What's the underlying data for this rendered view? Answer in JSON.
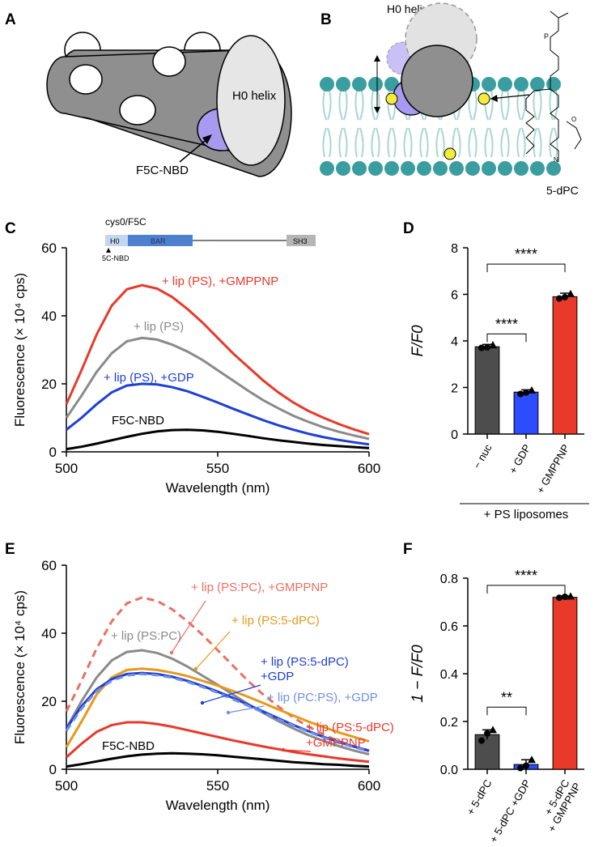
{
  "panel_labels": {
    "a": "A",
    "b": "B",
    "c": "C",
    "d": "D",
    "e": "E",
    "f": "F"
  },
  "panel_a": {
    "helix_label": "H0 helix",
    "probe_label": "F5C-NBD"
  },
  "panel_b": {
    "helix_label": "H0 helix",
    "lipid_label": "5-dPC"
  },
  "colors": {
    "black": "#000000",
    "grey": "#8a8a8a",
    "dark_grey": "#4d4d4d",
    "blue": "#1d3fd6",
    "red": "#e8392b",
    "salmon": "#ec6f62",
    "orange": "#e59a1a",
    "light_blue": "#6f8fe8",
    "bright_blue": "#2d4bff",
    "teal": "#3a9da0",
    "lavender": "#a79af0"
  },
  "chart_data": [
    {
      "id": "C",
      "type": "line",
      "title": "",
      "xlabel": "Wavelength (nm)",
      "ylabel": "Fluorescence (× 10⁴ cps)",
      "xlim": [
        500,
        600
      ],
      "ylim": [
        0,
        60
      ],
      "xticks": [
        500,
        550,
        600
      ],
      "yticks": [
        0,
        20,
        40,
        60
      ],
      "domain_diagram": {
        "construct": "cys0/F5C",
        "domains": [
          "H0",
          "BAR",
          "SH3"
        ],
        "marker": "5C-NBD"
      },
      "series": [
        {
          "name": "+ lip (PS), +GMPPNP",
          "color": "red",
          "dashed": false,
          "x": [
            500,
            505,
            510,
            515,
            520,
            525,
            530,
            535,
            540,
            545,
            550,
            555,
            560,
            565,
            570,
            575,
            580,
            585,
            590,
            595,
            600
          ],
          "y": [
            14.0,
            24.0,
            34.5,
            43.0,
            47.8,
            49.0,
            48.0,
            45.5,
            42.0,
            38.0,
            33.5,
            29.0,
            25.0,
            21.0,
            17.5,
            14.5,
            12.0,
            10.0,
            8.2,
            6.6,
            5.2
          ]
        },
        {
          "name": "+ lip (PS)",
          "color": "grey",
          "dashed": false,
          "x": [
            500,
            505,
            510,
            515,
            520,
            525,
            530,
            535,
            540,
            545,
            550,
            555,
            560,
            565,
            570,
            575,
            580,
            585,
            590,
            595,
            600
          ],
          "y": [
            10.0,
            16.5,
            23.5,
            29.0,
            32.5,
            33.5,
            33.0,
            31.5,
            29.5,
            27.0,
            24.0,
            21.0,
            18.0,
            15.2,
            12.8,
            10.6,
            8.8,
            7.2,
            5.9,
            4.8,
            3.8
          ]
        },
        {
          "name": "+ lip (PS), +GDP",
          "color": "blue",
          "dashed": false,
          "x": [
            500,
            505,
            510,
            515,
            520,
            525,
            530,
            535,
            540,
            545,
            550,
            555,
            560,
            565,
            570,
            575,
            580,
            585,
            590,
            595,
            600
          ],
          "y": [
            6.5,
            10.0,
            14.0,
            17.5,
            19.5,
            20.0,
            19.8,
            19.0,
            17.8,
            16.2,
            14.5,
            12.7,
            11.0,
            9.3,
            7.8,
            6.5,
            5.3,
            4.3,
            3.5,
            2.8,
            2.2
          ]
        },
        {
          "name": "F5C-NBD",
          "color": "black",
          "dashed": false,
          "x": [
            500,
            505,
            510,
            515,
            520,
            525,
            530,
            535,
            540,
            545,
            550,
            555,
            560,
            565,
            570,
            575,
            580,
            585,
            590,
            595,
            600
          ],
          "y": [
            0.8,
            1.5,
            2.4,
            3.4,
            4.4,
            5.3,
            6.0,
            6.4,
            6.5,
            6.3,
            5.9,
            5.3,
            4.7,
            4.0,
            3.4,
            2.9,
            2.4,
            2.0,
            1.7,
            1.4,
            1.1
          ]
        }
      ],
      "labels": [
        {
          "text": "+ lip (PS), +GMPPNP",
          "color": "red"
        },
        {
          "text": "+ lip (PS)",
          "color": "grey"
        },
        {
          "text": "+ lip (PS), +GDP",
          "color": "blue"
        },
        {
          "text": "F5C-NBD",
          "color": "black"
        }
      ]
    },
    {
      "id": "D",
      "type": "bar",
      "ylabel": "F/F0",
      "ylim": [
        0,
        8
      ],
      "yticks": [
        0,
        2,
        4,
        6,
        8
      ],
      "categories": [
        "− nuc",
        "+ GDP",
        "+ GMPPNP"
      ],
      "values": [
        3.75,
        1.8,
        5.9
      ],
      "errors": [
        0.1,
        0.1,
        0.15
      ],
      "points": [
        [
          3.7,
          3.72,
          3.82
        ],
        [
          1.72,
          1.78,
          1.88
        ],
        [
          5.82,
          5.88,
          6.02
        ]
      ],
      "bar_colors": [
        "dark_grey",
        "bright_blue",
        "red"
      ],
      "group_label": "+ PS liposomes",
      "significance": [
        {
          "pair": [
            0,
            1
          ],
          "label": "****",
          "y": 4.3
        },
        {
          "pair": [
            0,
            2
          ],
          "label": "****",
          "y": 7.3
        }
      ]
    },
    {
      "id": "E",
      "type": "line",
      "xlabel": "Wavelength (nm)",
      "ylabel": "Fluorescence (× 10⁴ cps)",
      "xlim": [
        500,
        600
      ],
      "ylim": [
        0,
        60
      ],
      "xticks": [
        500,
        550,
        600
      ],
      "yticks": [
        0,
        20,
        40,
        60
      ],
      "series": [
        {
          "name": "+ lip (PS:PC), +GMPPNP",
          "color": "salmon",
          "dashed": true,
          "x": [
            500,
            505,
            510,
            515,
            520,
            525,
            530,
            535,
            540,
            545,
            550,
            555,
            560,
            565,
            570,
            575,
            580,
            585,
            590,
            595,
            600
          ],
          "y": [
            17.0,
            26.0,
            35.5,
            43.5,
            48.8,
            50.5,
            49.5,
            47.0,
            43.5,
            39.5,
            35.0,
            30.5,
            26.0,
            22.0,
            18.5,
            15.2,
            12.5,
            10.2,
            8.3,
            6.7,
            5.3
          ]
        },
        {
          "name": "+ lip (PS:PC)",
          "color": "grey",
          "dashed": false,
          "x": [
            500,
            505,
            510,
            515,
            520,
            525,
            530,
            535,
            540,
            545,
            550,
            555,
            560,
            565,
            570,
            575,
            580,
            585,
            590,
            595,
            600
          ],
          "y": [
            12.0,
            20.0,
            27.0,
            32.0,
            34.5,
            35.0,
            34.2,
            32.5,
            30.2,
            27.5,
            24.8,
            22.0,
            19.2,
            16.6,
            14.2,
            12.0,
            10.0,
            8.3,
            6.8,
            5.5,
            4.4
          ]
        },
        {
          "name": "+ lip (PS:5-dPC)",
          "color": "orange",
          "dashed": false,
          "x": [
            500,
            505,
            510,
            515,
            520,
            525,
            530,
            535,
            540,
            545,
            550,
            555,
            560,
            565,
            570,
            575,
            580,
            585,
            590,
            595,
            600
          ],
          "y": [
            6.5,
            14.0,
            22.0,
            27.0,
            29.2,
            29.6,
            29.2,
            28.4,
            27.4,
            26.0,
            24.6,
            23.0,
            21.3,
            19.5,
            17.6,
            15.8,
            14.0,
            12.4,
            10.8,
            9.5,
            8.2
          ]
        },
        {
          "name": "+ lip (PS:5-dPC) +GDP",
          "color": "blue",
          "dashed": false,
          "x": [
            500,
            505,
            510,
            515,
            520,
            525,
            530,
            535,
            540,
            545,
            550,
            555,
            560,
            565,
            570,
            575,
            580,
            585,
            590,
            595,
            600
          ],
          "y": [
            12.0,
            18.5,
            23.5,
            26.5,
            28.0,
            28.3,
            28.0,
            27.2,
            26.0,
            24.5,
            22.8,
            21.0,
            19.0,
            17.0,
            15.0,
            13.0,
            11.2,
            9.5,
            8.0,
            6.7,
            5.5
          ]
        },
        {
          "name": "+ lip (PC:PS), +GDP",
          "color": "light_blue",
          "dashed": true,
          "x": [
            500,
            505,
            510,
            515,
            520,
            525,
            530,
            535,
            540,
            545,
            550,
            555,
            560,
            565,
            570,
            575,
            580,
            585,
            590,
            595,
            600
          ],
          "y": [
            11.3,
            17.8,
            23.0,
            26.0,
            27.6,
            28.0,
            27.7,
            26.9,
            25.7,
            24.2,
            22.5,
            20.6,
            18.7,
            16.7,
            14.7,
            12.8,
            11.0,
            9.3,
            7.8,
            6.5,
            5.3
          ]
        },
        {
          "name": "+ lip (PS:5-dPC) +GMPPNP",
          "color": "red",
          "dashed": false,
          "x": [
            500,
            505,
            510,
            515,
            520,
            525,
            530,
            535,
            540,
            545,
            550,
            555,
            560,
            565,
            570,
            575,
            580,
            585,
            590,
            595,
            600
          ],
          "y": [
            3.5,
            7.5,
            11.0,
            13.0,
            13.8,
            13.8,
            13.3,
            12.5,
            11.5,
            10.5,
            9.5,
            8.5,
            7.6,
            6.7,
            5.9,
            5.1,
            4.4,
            3.8,
            3.2,
            2.7,
            2.2
          ]
        },
        {
          "name": "F5C-NBD",
          "color": "black",
          "dashed": false,
          "x": [
            500,
            505,
            510,
            515,
            520,
            525,
            530,
            535,
            540,
            545,
            550,
            555,
            560,
            565,
            570,
            575,
            580,
            585,
            590,
            595,
            600
          ],
          "y": [
            0.8,
            1.5,
            2.3,
            3.1,
            3.8,
            4.3,
            4.6,
            4.7,
            4.6,
            4.4,
            4.1,
            3.7,
            3.3,
            2.9,
            2.5,
            2.1,
            1.8,
            1.5,
            1.3,
            1.0,
            0.8
          ]
        }
      ],
      "labels": [
        {
          "text": "+ lip (PS:PC), +GMPPNP",
          "color": "salmon"
        },
        {
          "text": "+ lip (PS:5-dPC)",
          "color": "orange"
        },
        {
          "text": "+ lip (PS:PC)",
          "color": "grey"
        },
        {
          "text": "+ lip (PS:5-dPC)",
          "color": "blue"
        },
        {
          "text": "+GDP",
          "color": "blue"
        },
        {
          "text": "+ lip (PC:PS), +GDP",
          "color": "light_blue"
        },
        {
          "text": "+ lip (PS:5-dPC)",
          "color": "red"
        },
        {
          "text": "+GMPPNP",
          "color": "red"
        },
        {
          "text": "F5C-NBD",
          "color": "black"
        }
      ]
    },
    {
      "id": "F",
      "type": "bar",
      "ylabel": "1 − F/F0",
      "ylim": [
        0,
        0.8
      ],
      "yticks": [
        "0.0",
        "0.2",
        "0.4",
        "0.6",
        "0.8"
      ],
      "categories": [
        "+ 5-dPC",
        "+ 5-dPC +GDP",
        "+ 5-dPC\n+ GMPPNP"
      ],
      "values": [
        0.145,
        0.02,
        0.72
      ],
      "errors": [
        0.02,
        0.02,
        0.005
      ],
      "points": [
        [
          0.12,
          0.15,
          0.165
        ],
        [
          0.005,
          0.015,
          0.04
        ],
        [
          0.718,
          0.722,
          0.724
        ]
      ],
      "bar_colors": [
        "dark_grey",
        "bright_blue",
        "red"
      ],
      "significance": [
        {
          "pair": [
            0,
            1
          ],
          "label": "**",
          "y": 0.26
        },
        {
          "pair": [
            0,
            2
          ],
          "label": "****",
          "y": 0.77
        }
      ]
    }
  ]
}
